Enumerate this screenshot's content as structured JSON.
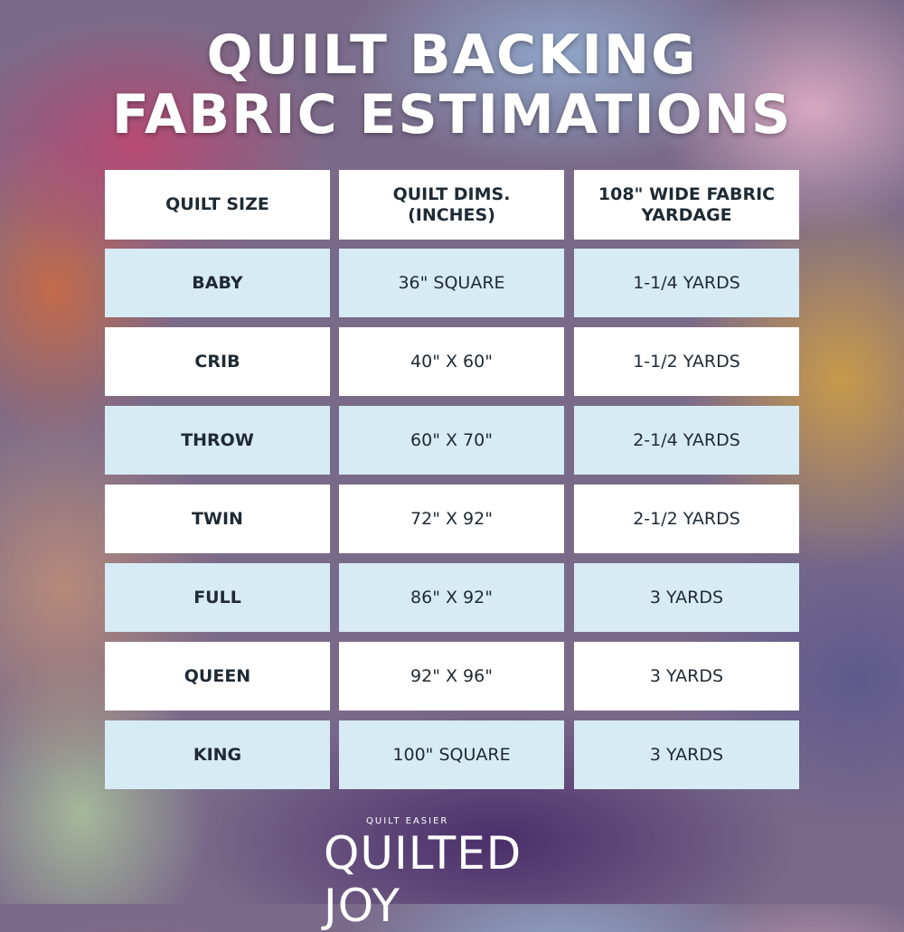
{
  "title": {
    "line1": "QUILT BACKING",
    "line2": "FABRIC ESTIMATIONS"
  },
  "table": {
    "headers": [
      "QUILT SIZE",
      "QUILT DIMS. (INCHES)",
      "108\" WIDE FABRIC YARDAGE"
    ],
    "rows": [
      [
        "BABY",
        "36\" SQUARE",
        "1-1/4 YARDS"
      ],
      [
        "CRIB",
        "40\" X 60\"",
        "1-1/2 YARDS"
      ],
      [
        "THROW",
        "60\" X 70\"",
        "2-1/4 YARDS"
      ],
      [
        "TWIN",
        "72\" X 92\"",
        "2-1/2 YARDS"
      ],
      [
        "FULL",
        "86\" X 92\"",
        "3 YARDS"
      ],
      [
        "QUEEN",
        "92\" X 96\"",
        "3 YARDS"
      ],
      [
        "KING",
        "100\" SQUARE",
        "3 YARDS"
      ]
    ]
  },
  "logo": {
    "tagline": "QUILT EASIER",
    "name": "QUILTED JOY"
  },
  "colors": {
    "header_bg": "#ffffff",
    "row_blue": "#d7ebf4",
    "row_white": "#ffffff",
    "text": "#1f2a33"
  }
}
